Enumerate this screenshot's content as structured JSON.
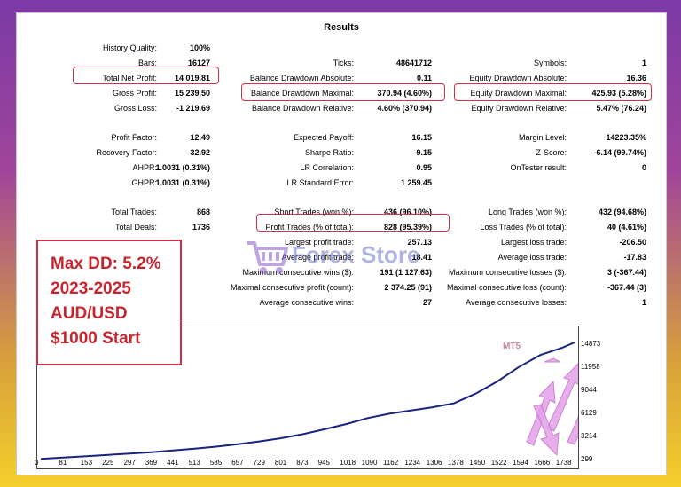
{
  "title": "Results",
  "col1": [
    {
      "label": "History Quality:",
      "value": "100%"
    },
    {
      "label": "Bars:",
      "value": "16127"
    },
    {
      "label": "Total Net Profit:",
      "value": "14 019.81"
    },
    {
      "label": "Gross Profit:",
      "value": "15 239.50"
    },
    {
      "label": "Gross Loss:",
      "value": "-1 219.69"
    },
    {
      "label": "Profit Factor:",
      "value": "12.49"
    },
    {
      "label": "Recovery Factor:",
      "value": "32.92"
    },
    {
      "label": "AHPR:",
      "value": "1.0031 (0.31%)"
    },
    {
      "label": "GHPR:",
      "value": "1.0031 (0.31%)"
    },
    {
      "label": "Total Trades:",
      "value": "868"
    },
    {
      "label": "Total Deals:",
      "value": "1736"
    }
  ],
  "col2": [
    {
      "label": "Ticks:",
      "value": "48641712"
    },
    {
      "label": "Balance Drawdown Absolute:",
      "value": "0.11"
    },
    {
      "label": "Balance Drawdown Maximal:",
      "value": "370.94 (4.60%)"
    },
    {
      "label": "Balance Drawdown Relative:",
      "value": "4.60% (370.94)"
    },
    {
      "label": "Expected Payoff:",
      "value": "16.15"
    },
    {
      "label": "Sharpe Ratio:",
      "value": "9.15"
    },
    {
      "label": "LR Correlation:",
      "value": "0.95"
    },
    {
      "label": "LR Standard Error:",
      "value": "1 259.45"
    },
    {
      "label": "Short Trades (won %):",
      "value": "436 (96.10%)"
    },
    {
      "label": "Profit Trades (% of total):",
      "value": "828 (95.39%)"
    },
    {
      "label": "Largest profit trade:",
      "value": "257.13"
    },
    {
      "label": "Average profit trade:",
      "value": "18.41"
    },
    {
      "label": "Maximum consecutive wins ($):",
      "value": "191 (1 127.63)"
    },
    {
      "label": "Maximal consecutive profit (count):",
      "value": "2 374.25 (91)"
    },
    {
      "label": "Average consecutive wins:",
      "value": "27"
    }
  ],
  "col3": [
    {
      "label": "Symbols:",
      "value": "1"
    },
    {
      "label": "Equity Drawdown Absolute:",
      "value": "16.36"
    },
    {
      "label": "Equity Drawdown Maximal:",
      "value": "425.93 (5.28%)"
    },
    {
      "label": "Equity Drawdown Relative:",
      "value": "5.47% (76.24)"
    },
    {
      "label": "Margin Level:",
      "value": "14223.35%"
    },
    {
      "label": "Z-Score:",
      "value": "-6.14 (99.74%)"
    },
    {
      "label": "OnTester result:",
      "value": "0"
    },
    {
      "label": "Long Trades (won %):",
      "value": "432 (94.68%)"
    },
    {
      "label": "Loss Trades (% of total):",
      "value": "40 (4.61%)"
    },
    {
      "label": "Largest loss trade:",
      "value": "-206.50"
    },
    {
      "label": "Average loss trade:",
      "value": "-17.83"
    },
    {
      "label": "Maximum consecutive losses ($):",
      "value": "3 (-367.44)"
    },
    {
      "label": "Maximal consecutive loss (count):",
      "value": "-367.44 (3)"
    },
    {
      "label": "Average consecutive losses:",
      "value": "1"
    }
  ],
  "promo": {
    "lines": [
      "Max DD: 5.2%",
      "2023-2025",
      "AUD/USD",
      "$1000 Start"
    ],
    "color": "#c8242e"
  },
  "watermark": {
    "text": "Forex Store",
    "icon": "cart-icon"
  },
  "chart_data": {
    "type": "line",
    "label": "MT5",
    "y_ticks": [
      "14873",
      "11958",
      "9044",
      "6129",
      "3214",
      "299"
    ],
    "x_ticks": [
      "0",
      "81",
      "153",
      "225",
      "297",
      "369",
      "441",
      "513",
      "585",
      "657",
      "729",
      "801",
      "873",
      "945",
      "1018",
      "1090",
      "1162",
      "1234",
      "1306",
      "1378",
      "1450",
      "1522",
      "1594",
      "1666",
      "1738"
    ],
    "ylim": [
      299,
      14873
    ],
    "xlim": [
      0,
      1780
    ],
    "series": [
      {
        "color": "#1a237e",
        "x": [
          0,
          81,
          153,
          225,
          297,
          369,
          441,
          513,
          585,
          657,
          729,
          801,
          873,
          945,
          1018,
          1090,
          1162,
          1234,
          1306,
          1378,
          1450,
          1522,
          1594,
          1666,
          1738,
          1780
        ],
        "y": [
          380,
          560,
          720,
          880,
          1050,
          1220,
          1420,
          1650,
          1900,
          2200,
          2550,
          2950,
          3450,
          4050,
          4700,
          5450,
          6000,
          6400,
          6800,
          7300,
          8500,
          10000,
          11800,
          13300,
          14200,
          14873
        ]
      }
    ]
  }
}
